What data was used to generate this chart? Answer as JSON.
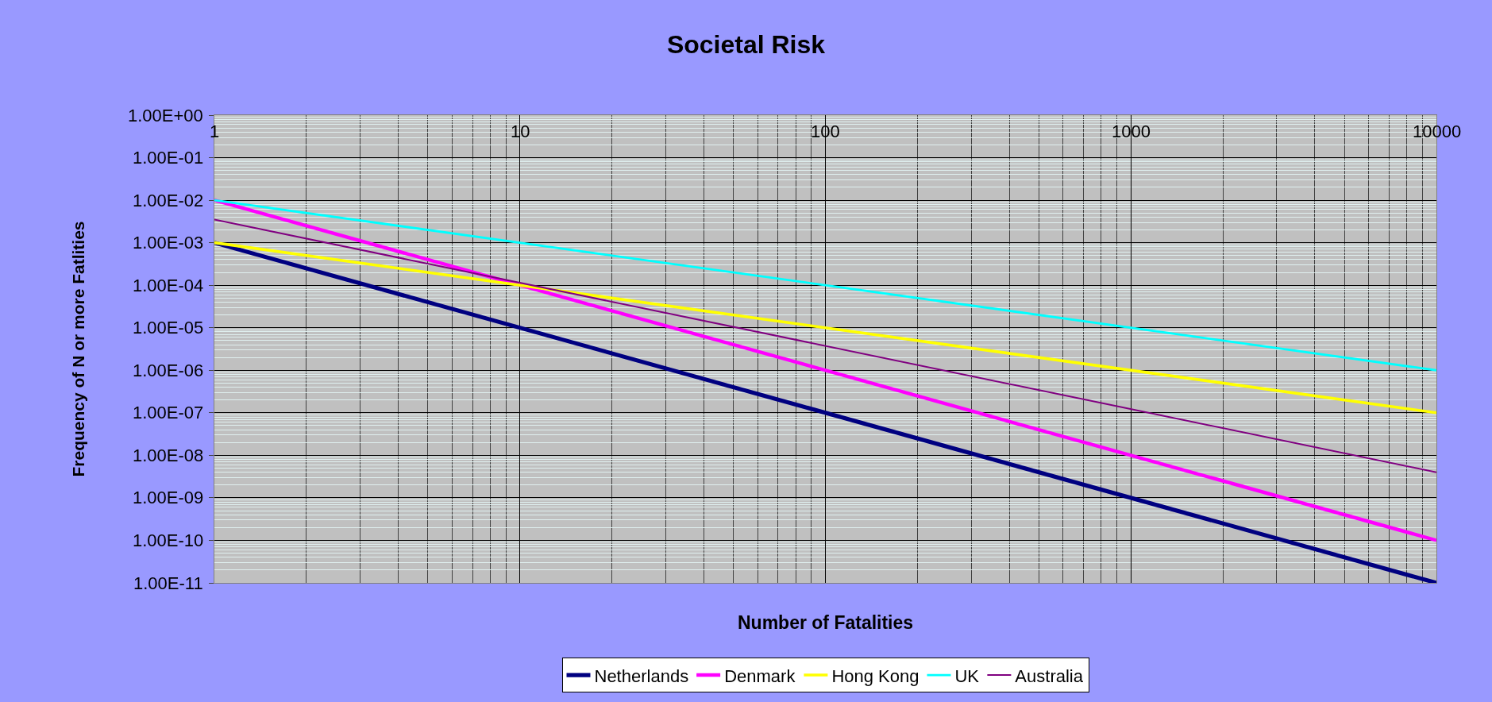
{
  "chart_data": {
    "type": "line",
    "title": "Societal Risk",
    "xlabel": "Number of Fatalities",
    "ylabel": "Frequency of N or more Fatlities",
    "log": "xy",
    "grid": true,
    "legend": "bottom",
    "marker": "none",
    "line_style": "solid",
    "xlim": [
      1,
      10000
    ],
    "xticks": [
      1,
      10,
      100,
      1000,
      10000
    ],
    "ylim": [
      1e-11,
      1
    ],
    "yticks": [
      {
        "value": 1e-11,
        "label": "1.00E-11"
      },
      {
        "value": 1e-10,
        "label": "1.00E-10"
      },
      {
        "value": 1e-09,
        "label": "1.00E-09"
      },
      {
        "value": 1e-08,
        "label": "1.00E-08"
      },
      {
        "value": 1e-07,
        "label": "1.00E-07"
      },
      {
        "value": 1e-06,
        "label": "1.00E-06"
      },
      {
        "value": 1e-05,
        "label": "1.00E-05"
      },
      {
        "value": 0.0001,
        "label": "1.00E-04"
      },
      {
        "value": 0.001,
        "label": "1.00E-03"
      },
      {
        "value": 0.01,
        "label": "1.00E-02"
      },
      {
        "value": 0.1,
        "label": "1.00E-01"
      },
      {
        "value": 1,
        "label": "1.00E+00"
      }
    ],
    "x": [
      1,
      10000
    ],
    "series": [
      {
        "name": "Netherlands",
        "color": "#000080",
        "values": [
          0.001,
          1e-11
        ]
      },
      {
        "name": "Denmark",
        "color": "#ff00ff",
        "values": [
          0.01,
          1e-10
        ]
      },
      {
        "name": "Hong Kong",
        "color": "#ffff00",
        "values": [
          0.001,
          1e-07
        ]
      },
      {
        "name": "UK",
        "color": "#00ffff",
        "values": [
          0.01,
          1e-06
        ]
      },
      {
        "name": "Australia",
        "color": "#800080",
        "values": [
          0.0035,
          4e-09
        ]
      }
    ]
  }
}
